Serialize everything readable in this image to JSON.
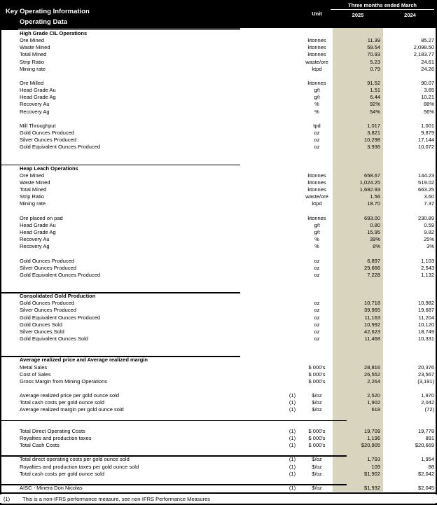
{
  "header": {
    "title": "Key Operating Information",
    "subtitle": "Operating Data",
    "unit_label": "Unit",
    "period_label": "Three months ended March",
    "col_2025": "2025",
    "col_2024": "2024"
  },
  "colors": {
    "band_bg": "#000000",
    "band_text": "#ffffff",
    "highlight_column_2025": "#d8d4bd",
    "body_text": "#000000"
  },
  "table": {
    "rows": [
      {
        "t": "h",
        "label": "High Grade CIL Operations"
      },
      {
        "t": "d",
        "label": "Ore Mined",
        "ref": "",
        "unit": "ktonnes",
        "v2025": "11.39",
        "v2024": "85.27"
      },
      {
        "t": "d",
        "label": "Waste Mined",
        "ref": "",
        "unit": "ktonnes",
        "v2025": "59.54",
        "v2024": "2,098.50"
      },
      {
        "t": "d",
        "label": "Total Mined",
        "ref": "",
        "unit": "ktonnes",
        "v2025": "70.93",
        "v2024": "2,183.77"
      },
      {
        "t": "d",
        "label": "Strip Ratio",
        "ref": "",
        "unit": "waste/ore",
        "v2025": "5.23",
        "v2024": "24.61"
      },
      {
        "t": "d",
        "label": "Mining rate",
        "ref": "",
        "unit": "ktpd",
        "v2025": "0.79",
        "v2024": "24.26"
      },
      {
        "t": "b"
      },
      {
        "t": "d",
        "label": "Ore Milled",
        "ref": "",
        "unit": "ktonnes",
        "v2025": "91.52",
        "v2024": "90.07"
      },
      {
        "t": "d",
        "label": "Head Grade Au",
        "ref": "",
        "unit": "g/t",
        "v2025": "1.51",
        "v2024": "3.65"
      },
      {
        "t": "d",
        "label": "Head Grade Ag",
        "ref": "",
        "unit": "g/t",
        "v2025": "6.44",
        "v2024": "10.21"
      },
      {
        "t": "d",
        "label": "Recovery Au",
        "ref": "",
        "unit": "%",
        "v2025": "92%",
        "v2024": "88%"
      },
      {
        "t": "d",
        "label": "Recovery Ag",
        "ref": "",
        "unit": "%",
        "v2025": "54%",
        "v2024": "56%"
      },
      {
        "t": "b"
      },
      {
        "t": "d",
        "label": "Mill Throughput",
        "ref": "",
        "unit": "tpd",
        "v2025": "1,017",
        "v2024": "1,001"
      },
      {
        "t": "d",
        "label": "Gold Ounces Produced",
        "ref": "",
        "unit": "oz",
        "v2025": "3,821",
        "v2024": "9,879"
      },
      {
        "t": "d",
        "label": "Silver Ounces Produced",
        "ref": "",
        "unit": "oz",
        "v2025": "10,298",
        "v2024": "17,144"
      },
      {
        "t": "d",
        "label": "Gold Equivalent Ounces Produced",
        "ref": "",
        "unit": "oz",
        "v2025": "3,936",
        "v2024": "10,072"
      },
      {
        "t": "b"
      },
      {
        "t": "b"
      },
      {
        "t": "h",
        "label": "Heap Leach Operations",
        "line": "short"
      },
      {
        "t": "d",
        "label": "Ore Mined",
        "ref": "",
        "unit": "ktonnes",
        "v2025": "658.67",
        "v2024": "144.23"
      },
      {
        "t": "d",
        "label": "Waste Mined",
        "ref": "",
        "unit": "ktonnes",
        "v2025": "1,024.25",
        "v2024": "519.02"
      },
      {
        "t": "d",
        "label": "Total Mined",
        "ref": "",
        "unit": "ktonnes",
        "v2025": "1,682.93",
        "v2024": "663.25"
      },
      {
        "t": "d",
        "label": "Strip Ratio",
        "ref": "",
        "unit": "waste/ore",
        "v2025": "1.56",
        "v2024": "3.60"
      },
      {
        "t": "d",
        "label": "Mining rate",
        "ref": "",
        "unit": "ktpd",
        "v2025": "18.70",
        "v2024": "7.37"
      },
      {
        "t": "b"
      },
      {
        "t": "d",
        "label": "Ore placed on pad",
        "ref": "",
        "unit": "ktonnes",
        "v2025": "693.00",
        "v2024": "230.89"
      },
      {
        "t": "d",
        "label": "Head Grade Au",
        "ref": "",
        "unit": "g/t",
        "v2025": "0.80",
        "v2024": "0.59"
      },
      {
        "t": "d",
        "label": "Head Grade Ag",
        "ref": "",
        "unit": "g/t",
        "v2025": "15.95",
        "v2024": "9.82"
      },
      {
        "t": "d",
        "label": "Recovery Au",
        "ref": "",
        "unit": "%",
        "v2025": "39%",
        "v2024": "25%"
      },
      {
        "t": "d",
        "label": "Recovery Ag",
        "ref": "",
        "unit": "%",
        "v2025": "8%",
        "v2024": "3%"
      },
      {
        "t": "b"
      },
      {
        "t": "d",
        "label": "Gold Ounces Produced",
        "ref": "",
        "unit": "oz",
        "v2025": "6,897",
        "v2024": "1,103"
      },
      {
        "t": "d",
        "label": "Silver Ounces Produced",
        "ref": "",
        "unit": "oz",
        "v2025": "29,666",
        "v2024": "2,543"
      },
      {
        "t": "d",
        "label": "Gold Equivalent Ounces Produced",
        "ref": "",
        "unit": "oz",
        "v2025": "7,228",
        "v2024": "1,132"
      },
      {
        "t": "b"
      },
      {
        "t": "b"
      },
      {
        "t": "h",
        "label": "Consolidated Gold Production",
        "line": "short"
      },
      {
        "t": "d",
        "label": "Gold Ounces Produced",
        "ref": "",
        "unit": "oz",
        "v2025": "10,718",
        "v2024": "10,982"
      },
      {
        "t": "d",
        "label": "Silver Ounces Produced",
        "ref": "",
        "unit": "oz",
        "v2025": "39,965",
        "v2024": "19,687"
      },
      {
        "t": "d",
        "label": "Gold Equivalent Ounces Produced",
        "ref": "",
        "unit": "oz",
        "v2025": "11,163",
        "v2024": "11,204"
      },
      {
        "t": "d",
        "label": "Gold Ounces Sold",
        "ref": "",
        "unit": "oz",
        "v2025": "10,992",
        "v2024": "10,120"
      },
      {
        "t": "d",
        "label": "Silver Ounces Sold",
        "ref": "",
        "unit": "oz",
        "v2025": "42,623",
        "v2024": "18,749"
      },
      {
        "t": "d",
        "label": "Gold Equivalent Ounces Sold",
        "ref": "",
        "unit": "oz",
        "v2025": "11,468",
        "v2024": "10,331"
      },
      {
        "t": "b"
      },
      {
        "t": "b"
      },
      {
        "t": "h",
        "label": "Average realized price and Average realized margin",
        "line": "short"
      },
      {
        "t": "d",
        "label": "Metal Sales",
        "ref": "",
        "unit": "$ 000's",
        "v2025": "28,816",
        "v2024": "20,376"
      },
      {
        "t": "d",
        "label": "Cost of Sales",
        "ref": "",
        "unit": "$ 000's",
        "v2025": "26,552",
        "v2024": "23,567"
      },
      {
        "t": "d",
        "label": "Gross Margin from Mining Operations",
        "ref": "",
        "unit": "$ 000's",
        "v2025": "2,264",
        "v2024": "(3,191)"
      },
      {
        "t": "b"
      },
      {
        "t": "d",
        "label": "Average realized price per gold ounce sold",
        "ref": "(1)",
        "unit": "$/oz",
        "v2025": "2,520",
        "v2024": "1,970"
      },
      {
        "t": "d",
        "label": "Total cash costs per gold ounce sold",
        "ref": "(1)",
        "unit": "$/oz",
        "v2025": "1,902",
        "v2024": "2,042"
      },
      {
        "t": "d",
        "label": "Average realized margin per gold ounce sold",
        "ref": "(1)",
        "unit": "$/oz",
        "v2025": "618",
        "v2024": "(72)"
      },
      {
        "t": "b"
      },
      {
        "t": "b",
        "line": "long"
      },
      {
        "t": "d",
        "label": "Total Direct Operating Costs",
        "ref": "(1)",
        "unit": "$ 000's",
        "v2025": "19,709",
        "v2024": "19,778"
      },
      {
        "t": "d",
        "label": "Royalties and production taxes",
        "ref": "(1)",
        "unit": "$ 000's",
        "v2025": "1,196",
        "v2024": "891"
      },
      {
        "t": "d",
        "label": "Total Cash Costs",
        "ref": "(1)",
        "unit": "$ 000's",
        "v2025": "$20,905",
        "v2024": "$20,669"
      },
      {
        "t": "b"
      },
      {
        "t": "d",
        "label": "Total direct operating costs per gold ounce sold",
        "ref": "(1)",
        "unit": "$/oz",
        "v2025": "1,793",
        "v2024": "1,954",
        "line": "long"
      },
      {
        "t": "d",
        "label": "Royalties and production taxes per gold ounce sold",
        "ref": "(1)",
        "unit": "$/oz",
        "v2025": "109",
        "v2024": "88"
      },
      {
        "t": "d",
        "label": "Total cash costs per gold ounce sold",
        "ref": "(1)",
        "unit": "$/oz",
        "v2025": "$1,902",
        "v2024": "$2,042"
      },
      {
        "t": "b"
      },
      {
        "t": "d",
        "label": "AISC - Minera Don Nicolas",
        "ref": "(1)",
        "unit": "$/oz",
        "v2025": "$1,932",
        "v2024": "$2,045",
        "line": "long"
      }
    ]
  },
  "footnote": {
    "ref": "(1)",
    "text": "This is a non-IFRS performance measure, see non-IFRS Performance Measures"
  }
}
